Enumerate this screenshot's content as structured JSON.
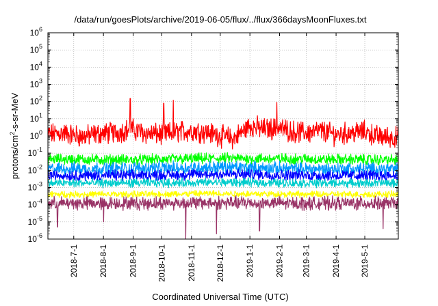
{
  "chart_data": {
    "type": "line",
    "title": "/data/run/goesPlots/archive/2019-06-05/flux/../flux/366daysMoonFluxes.txt",
    "xlabel": "Coordinated Universal Time (UTC)",
    "ylabel": {
      "main": "protons/cm",
      "sup": "2",
      "rest": "-s-sr-MeV"
    },
    "xlim": [
      "2018-06-04",
      "2019-06-05"
    ],
    "ylim": [
      1e-06,
      1000000.0
    ],
    "yscale": "log",
    "grid": true,
    "x_ticks": [
      {
        "date": "2018-07-01",
        "label": "2018-7-1"
      },
      {
        "date": "2018-08-01",
        "label": "2018-8-1"
      },
      {
        "date": "2018-09-01",
        "label": "2018-9-1"
      },
      {
        "date": "2018-10-01",
        "label": "2018-10-1"
      },
      {
        "date": "2018-11-01",
        "label": "2018-11-1"
      },
      {
        "date": "2018-12-01",
        "label": "2018-12-1"
      },
      {
        "date": "2019-01-01",
        "label": "2019-1-1"
      },
      {
        "date": "2019-02-01",
        "label": "2019-2-1"
      },
      {
        "date": "2019-03-01",
        "label": "2019-3-1"
      },
      {
        "date": "2019-04-01",
        "label": "2019-4-1"
      },
      {
        "date": "2019-05-01",
        "label": "2019-5-1"
      }
    ],
    "y_ticks": [
      {
        "value": 1e-06,
        "base": "10",
        "exp": "-6"
      },
      {
        "value": 1e-05,
        "base": "10",
        "exp": "-5"
      },
      {
        "value": 0.0001,
        "base": "10",
        "exp": "-4"
      },
      {
        "value": 0.001,
        "base": "10",
        "exp": "-3"
      },
      {
        "value": 0.01,
        "base": "10",
        "exp": "-2"
      },
      {
        "value": 0.1,
        "base": "10",
        "exp": "-1"
      },
      {
        "value": 1.0,
        "base": "10",
        "exp": "0"
      },
      {
        "value": 10.0,
        "base": "10",
        "exp": "1"
      },
      {
        "value": 100.0,
        "base": "10",
        "exp": "2"
      },
      {
        "value": 1000.0,
        "base": "10",
        "exp": "3"
      },
      {
        "value": 10000.0,
        "base": "10",
        "exp": "4"
      },
      {
        "value": 100000.0,
        "base": "10",
        "exp": "5"
      },
      {
        "value": 1000000.0,
        "base": "10",
        "exp": "6"
      }
    ],
    "series": [
      {
        "color": "#ff0000",
        "x": [
          "2018-06-04",
          "2018-06-20",
          "2018-07-10",
          "2018-07-25",
          "2018-08-15",
          "2018-08-29",
          "2018-09-15",
          "2018-10-01",
          "2018-10-20",
          "2018-11-05",
          "2018-11-20",
          "2018-12-01",
          "2018-12-15",
          "2019-01-01",
          "2019-01-15",
          "2019-02-01",
          "2019-02-15",
          "2019-03-01",
          "2019-03-15",
          "2019-04-01",
          "2019-04-15",
          "2019-05-01",
          "2019-05-15",
          "2019-06-05"
        ],
        "y": [
          1.2,
          1.5,
          0.9,
          1.3,
          1.6,
          2.5,
          1.4,
          1.2,
          1.8,
          2.0,
          1.5,
          1.0,
          0.7,
          4.0,
          2.5,
          2.8,
          1.8,
          1.5,
          2.0,
          1.2,
          1.5,
          1.8,
          0.9,
          0.8
        ],
        "spikes": [
          {
            "date": "2018-08-29",
            "y": 150
          },
          {
            "date": "2018-10-03",
            "y": 80
          },
          {
            "date": "2018-10-13",
            "y": 120
          },
          {
            "date": "2019-01-29",
            "y": 90
          }
        ],
        "spread": 0.5
      },
      {
        "color": "#00ff00",
        "x": [
          "2018-06-04",
          "2018-09-01",
          "2018-12-01",
          "2019-03-01",
          "2019-06-05"
        ],
        "y": [
          0.045,
          0.04,
          0.05,
          0.045,
          0.04
        ],
        "spikes": [],
        "spread": 0.25
      },
      {
        "color": "#0099ff",
        "x": [
          "2018-06-04",
          "2018-09-01",
          "2018-12-01",
          "2019-03-01",
          "2019-06-05"
        ],
        "y": [
          0.012,
          0.013,
          0.015,
          0.012,
          0.012
        ],
        "spikes": [],
        "spread": 0.3
      },
      {
        "color": "#0000ff",
        "x": [
          "2018-06-04",
          "2018-09-01",
          "2018-12-01",
          "2019-03-01",
          "2019-06-05"
        ],
        "y": [
          0.005,
          0.005,
          0.006,
          0.005,
          0.005
        ],
        "spikes": [],
        "spread": 0.25
      },
      {
        "color": "#00cccc",
        "x": [
          "2018-06-04",
          "2018-09-01",
          "2018-12-01",
          "2019-03-01",
          "2019-06-05"
        ],
        "y": [
          0.0018,
          0.0018,
          0.002,
          0.0018,
          0.0018
        ],
        "spikes": [],
        "spread": 0.2
      },
      {
        "color": "#ffff00",
        "x": [
          "2018-06-04",
          "2018-09-01",
          "2018-12-01",
          "2019-03-01",
          "2019-06-05"
        ],
        "y": [
          0.0004,
          0.0004,
          0.00045,
          0.0004,
          0.0004
        ],
        "spikes": [],
        "spread": 0.15
      },
      {
        "color": "#993366",
        "x": [
          "2018-06-04",
          "2018-09-01",
          "2018-12-01",
          "2019-03-01",
          "2019-06-05"
        ],
        "y": [
          0.00012,
          0.00012,
          0.00013,
          0.00012,
          0.00012
        ],
        "spikes": [
          {
            "date": "2018-06-14",
            "y": 5e-06
          },
          {
            "date": "2018-08-01",
            "y": 1e-05
          },
          {
            "date": "2018-10-26",
            "y": 1e-06
          },
          {
            "date": "2018-11-27",
            "y": 2e-06
          },
          {
            "date": "2019-01-11",
            "y": 3e-06
          },
          {
            "date": "2019-05-20",
            "y": 4e-06
          }
        ],
        "spread": 0.3
      }
    ]
  }
}
